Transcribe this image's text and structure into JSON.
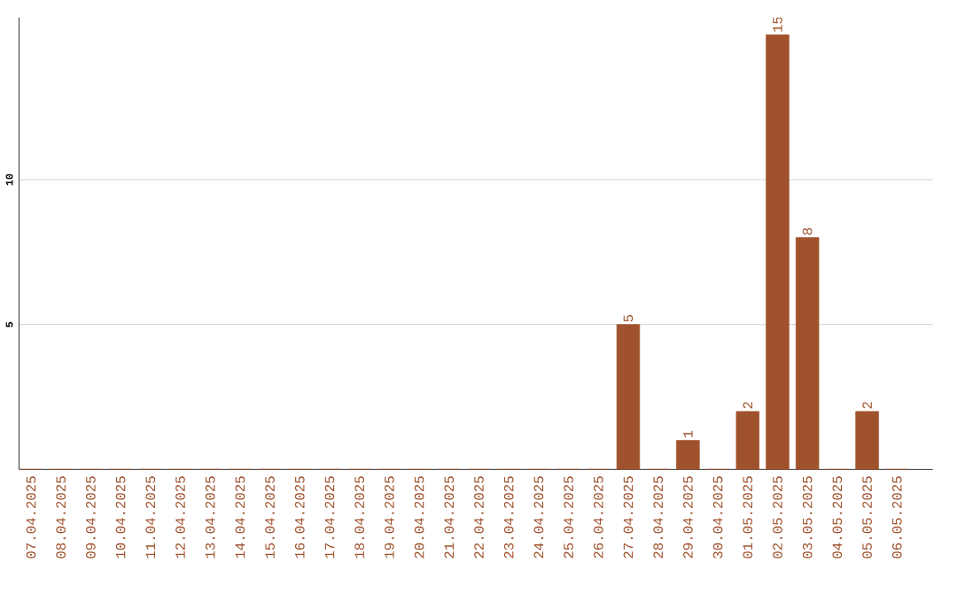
{
  "chart_data": {
    "type": "bar",
    "categories": [
      "07.04.2025",
      "08.04.2025",
      "09.04.2025",
      "10.04.2025",
      "11.04.2025",
      "12.04.2025",
      "13.04.2025",
      "14.04.2025",
      "15.04.2025",
      "16.04.2025",
      "17.04.2025",
      "18.04.2025",
      "19.04.2025",
      "20.04.2025",
      "21.04.2025",
      "22.04.2025",
      "23.04.2025",
      "24.04.2025",
      "25.04.2025",
      "26.04.2025",
      "27.04.2025",
      "28.04.2025",
      "29.04.2025",
      "30.04.2025",
      "01.05.2025",
      "02.05.2025",
      "03.05.2025",
      "04.05.2025",
      "05.05.2025",
      "06.05.2025"
    ],
    "values": [
      0,
      0,
      0,
      0,
      0,
      0,
      0,
      0,
      0,
      0,
      0,
      0,
      0,
      0,
      0,
      0,
      0,
      0,
      0,
      0,
      5,
      0,
      1,
      0,
      2,
      15,
      8,
      0,
      2,
      0
    ],
    "value_labels": [
      null,
      null,
      null,
      null,
      null,
      null,
      null,
      null,
      null,
      null,
      null,
      null,
      null,
      null,
      null,
      null,
      null,
      null,
      null,
      null,
      "5",
      null,
      "1",
      null,
      "2",
      "15",
      "8",
      null,
      "2",
      null
    ],
    "color": "#a0522d",
    "ylim": [
      0,
      15.6
    ],
    "yticks": [
      5,
      10
    ],
    "grid": "y"
  }
}
